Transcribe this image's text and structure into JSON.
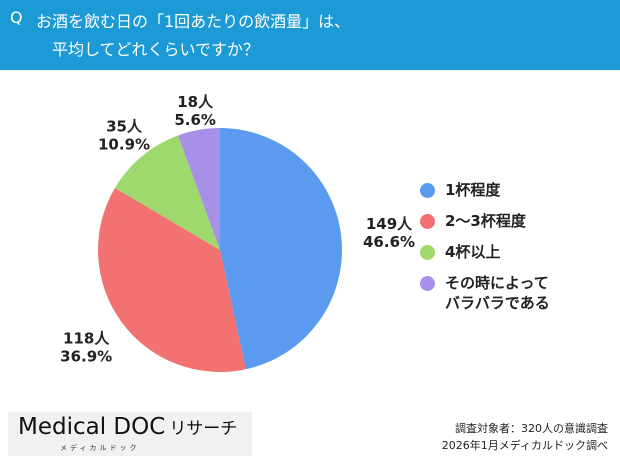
{
  "header": {
    "q": "Q",
    "line1": "お酒を飲む日の「1回あたりの飲酒量」は、",
    "line2": "平均してどれくらいですか？"
  },
  "chart_data": {
    "type": "pie",
    "title": "お酒を飲む日の「1回あたりの飲酒量」は、平均してどれくらいですか？",
    "categories": [
      "1杯程度",
      "2〜3杯程度",
      "4杯以上",
      "その時によってバラバラである"
    ],
    "counts": [
      149,
      118,
      35,
      18
    ],
    "values": [
      46.6,
      36.9,
      10.9,
      5.6
    ],
    "count_labels": [
      "149人",
      "118人",
      "35人",
      "18人"
    ],
    "percent_labels": [
      "46.6%",
      "36.9%",
      "10.9%",
      "5.6%"
    ],
    "colors": [
      "#5b9bef",
      "#f27272",
      "#9fd86d",
      "#a88fe8"
    ],
    "legend_position": "right",
    "start": "top, clockwise"
  },
  "legend": [
    "1杯程度",
    "2〜3杯程度",
    "4杯以上",
    "その時によって",
    "バラバラである"
  ],
  "logo": {
    "main": "Medical DOC",
    "kana": "リサーチ",
    "sub": "メディカルドック"
  },
  "footer": {
    "line1": "調査対象者：320人の意識調査",
    "line2": "2026年1月メディカルドック調べ"
  }
}
